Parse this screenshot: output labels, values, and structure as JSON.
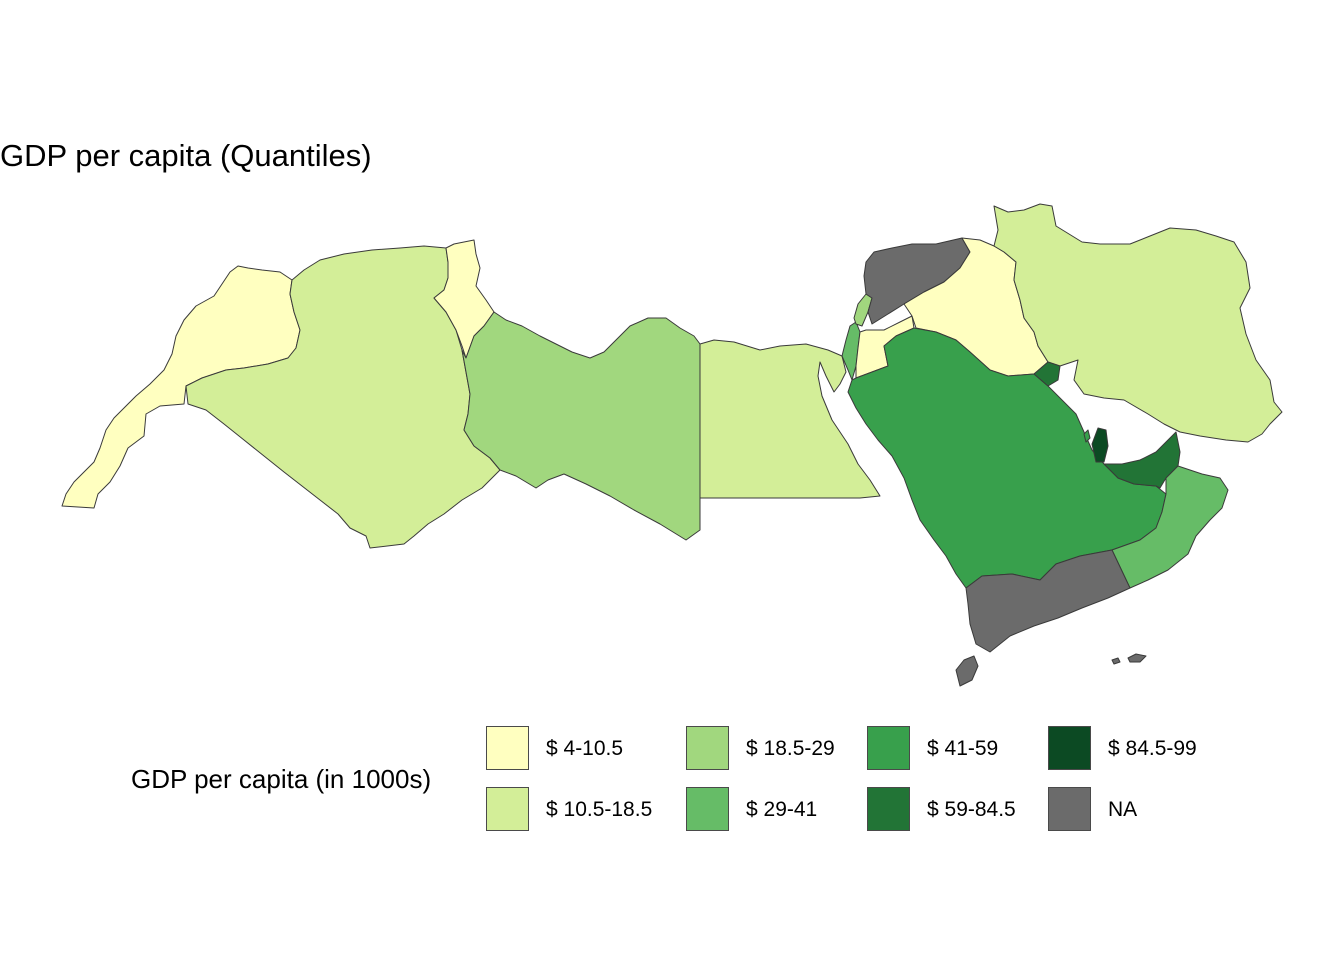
{
  "title": "GDP per capita (Quantiles)",
  "legend": {
    "title": "GDP per capita (in 1000s)",
    "items": [
      {
        "label": "$ 4-10.5",
        "color": "#ffffc0"
      },
      {
        "label": "$ 10.5-18.5",
        "color": "#d3ee98"
      },
      {
        "label": "$ 18.5-29",
        "color": "#a1d77e"
      },
      {
        "label": "$ 29-41",
        "color": "#66bc67"
      },
      {
        "label": "$ 41-59",
        "color": "#38a04c"
      },
      {
        "label": "$ 59-84.5",
        "color": "#227436"
      },
      {
        "label": "$ 84.5-99",
        "color": "#0c4a23"
      },
      {
        "label": "NA",
        "color": "#6b6b6b"
      }
    ]
  },
  "regions": [
    {
      "name": "Morocco",
      "class": "$ 4-10.5"
    },
    {
      "name": "Algeria",
      "class": "$ 10.5-18.5"
    },
    {
      "name": "Tunisia",
      "class": "$ 4-10.5"
    },
    {
      "name": "Libya",
      "class": "$ 18.5-29"
    },
    {
      "name": "Egypt",
      "class": "$ 10.5-18.5"
    },
    {
      "name": "Israel",
      "class": "$ 29-41"
    },
    {
      "name": "Lebanon",
      "class": "$ 18.5-29"
    },
    {
      "name": "Jordan",
      "class": "$ 4-10.5"
    },
    {
      "name": "Syria",
      "class": "NA"
    },
    {
      "name": "Iraq",
      "class": "$ 4-10.5"
    },
    {
      "name": "Iran",
      "class": "$ 10.5-18.5"
    },
    {
      "name": "Saudi Arabia",
      "class": "$ 41-59"
    },
    {
      "name": "Kuwait",
      "class": "$ 59-84.5"
    },
    {
      "name": "Bahrain",
      "class": "$ 41-59"
    },
    {
      "name": "Qatar",
      "class": "$ 84.5-99"
    },
    {
      "name": "United Arab Emirates",
      "class": "$ 59-84.5"
    },
    {
      "name": "Oman",
      "class": "$ 29-41"
    },
    {
      "name": "Yemen",
      "class": "NA"
    }
  ]
}
